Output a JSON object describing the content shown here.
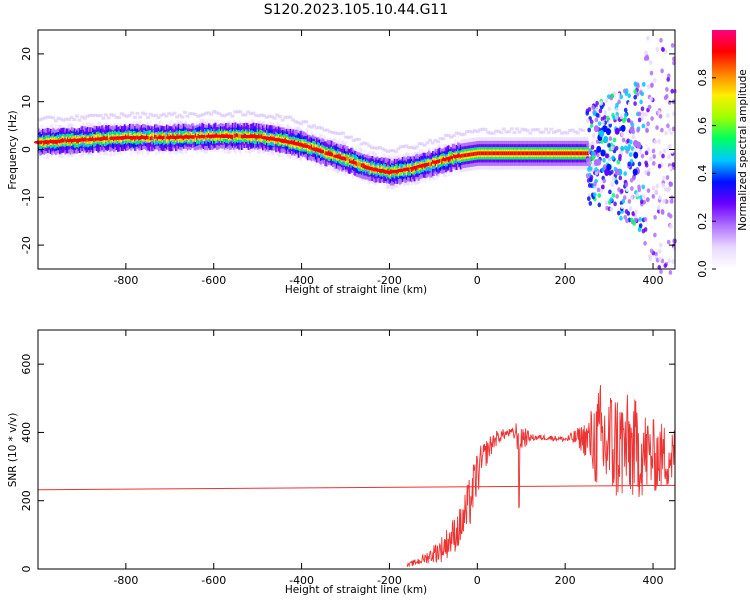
{
  "title": "S120.2023.105.10.44.G11",
  "chart_data": [
    {
      "type": "heatmap",
      "xlabel": "Height of straight line (km)",
      "ylabel": "Frequency (Hz)",
      "xlim": [
        -1000,
        450
      ],
      "ylim": [
        -25,
        25
      ],
      "x_ticks": [
        -800,
        -600,
        -400,
        -200,
        0,
        200,
        400
      ],
      "y_ticks": [
        -20,
        -10,
        0,
        10,
        20
      ],
      "colorbar": {
        "label": "Normalized spectral amplitude",
        "range": [
          0,
          1
        ],
        "ticks": [
          0.0,
          0.2,
          0.4,
          0.6,
          0.8
        ],
        "colormap": [
          "#ffffff",
          "#e8d8ff",
          "#b070ff",
          "#6a00ff",
          "#0010ff",
          "#00c8ff",
          "#00ff60",
          "#a0ff00",
          "#ffee00",
          "#ff8000",
          "#ff0000",
          "#ff0080"
        ]
      },
      "ridge_centerline": {
        "x": [
          -1000,
          -900,
          -800,
          -700,
          -600,
          -500,
          -450,
          -400,
          -350,
          -300,
          -250,
          -200,
          -150,
          -100,
          -50,
          0,
          100,
          200,
          250
        ],
        "y": [
          1.5,
          2.0,
          2.5,
          2.5,
          2.8,
          2.7,
          2.0,
          1.0,
          -0.5,
          -2.0,
          -3.8,
          -4.8,
          -4.0,
          -2.8,
          -1.5,
          -0.8,
          -0.8,
          -0.8,
          -0.8
        ]
      },
      "scatter_region": {
        "x_range": [
          250,
          450
        ],
        "y_range": [
          -25,
          25
        ]
      }
    },
    {
      "type": "line",
      "xlabel": "Height of straight line (km)",
      "ylabel": "SNR (10 * v/v)",
      "xlim": [
        -1000,
        450
      ],
      "ylim": [
        0,
        700
      ],
      "x_ticks": [
        -800,
        -600,
        -400,
        -200,
        0,
        200,
        400
      ],
      "y_ticks": [
        0,
        200,
        400,
        600
      ],
      "series_color": "#ee3333",
      "baseline": {
        "x": [
          -1000,
          450
        ],
        "y": [
          232,
          245
        ]
      },
      "envelope": {
        "x": [
          -160,
          -120,
          -80,
          -40,
          -20,
          0,
          20,
          40,
          60,
          80,
          95,
          120,
          160,
          200,
          230,
          250,
          280,
          320,
          360,
          400,
          450
        ],
        "y": [
          10,
          30,
          60,
          120,
          180,
          280,
          340,
          380,
          395,
          400,
          390,
          385,
          385,
          380,
          385,
          380,
          370,
          360,
          350,
          330,
          330
        ],
        "noise": [
          5,
          15,
          40,
          60,
          80,
          70,
          40,
          25,
          15,
          12,
          60,
          10,
          8,
          8,
          30,
          60,
          180,
          170,
          150,
          110,
          90
        ]
      }
    }
  ]
}
